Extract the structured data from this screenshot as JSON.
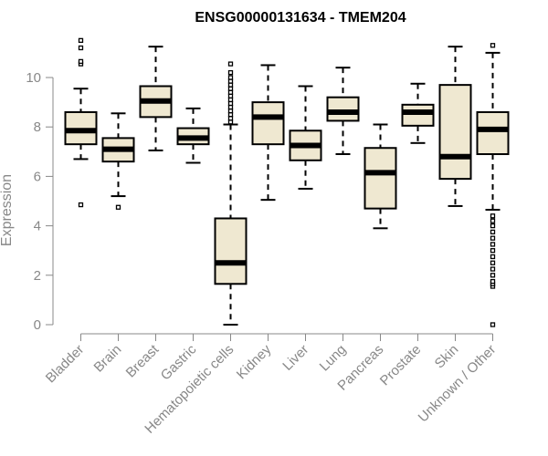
{
  "chart_data": {
    "type": "box",
    "title": "ENSG00000131634 - TMEM204",
    "ylabel": "Expression",
    "xlabel": "",
    "ylim": [
      0,
      11.2
    ],
    "yticks": [
      0,
      2,
      4,
      6,
      8,
      10
    ],
    "grid": false,
    "categories": [
      "Bladder",
      "Brain",
      "Breast",
      "Gastric",
      "Hematopoietic cells",
      "Kidney",
      "Liver",
      "Lung",
      "Pancreas",
      "Prostate",
      "Skin",
      "Unknown / Other"
    ],
    "boxes": [
      {
        "name": "Bladder",
        "whisker_low": 6.7,
        "q1": 7.3,
        "median": 7.85,
        "q3": 8.6,
        "whisker_high": 9.55,
        "outliers": [
          4.85,
          10.55,
          10.65,
          11.2,
          11.5
        ]
      },
      {
        "name": "Brain",
        "whisker_low": 5.2,
        "q1": 6.6,
        "median": 7.1,
        "q3": 7.55,
        "whisker_high": 8.55,
        "outliers": [
          4.75
        ]
      },
      {
        "name": "Breast",
        "whisker_low": 7.05,
        "q1": 8.4,
        "median": 9.05,
        "q3": 9.65,
        "whisker_high": 11.25,
        "outliers": []
      },
      {
        "name": "Gastric",
        "whisker_low": 6.55,
        "q1": 7.3,
        "median": 7.55,
        "q3": 7.95,
        "whisker_high": 8.75,
        "outliers": []
      },
      {
        "name": "Hematopoietic cells",
        "whisker_low": 0.0,
        "q1": 1.65,
        "median": 2.5,
        "q3": 4.3,
        "whisker_high": 8.1,
        "outliers": [
          8.2,
          8.35,
          8.5,
          8.65,
          8.8,
          8.95,
          9.1,
          9.25,
          9.4,
          9.55,
          9.7,
          9.85,
          10.0,
          10.2,
          10.55
        ]
      },
      {
        "name": "Kidney",
        "whisker_low": 5.05,
        "q1": 7.3,
        "median": 8.4,
        "q3": 9.0,
        "whisker_high": 10.5,
        "outliers": []
      },
      {
        "name": "Liver",
        "whisker_low": 5.5,
        "q1": 6.65,
        "median": 7.25,
        "q3": 7.85,
        "whisker_high": 9.65,
        "outliers": []
      },
      {
        "name": "Lung",
        "whisker_low": 6.9,
        "q1": 8.25,
        "median": 8.6,
        "q3": 9.2,
        "whisker_high": 10.4,
        "outliers": []
      },
      {
        "name": "Pancreas",
        "whisker_low": 3.9,
        "q1": 4.7,
        "median": 6.15,
        "q3": 7.15,
        "whisker_high": 8.1,
        "outliers": []
      },
      {
        "name": "Prostate",
        "whisker_low": 7.35,
        "q1": 8.05,
        "median": 8.6,
        "q3": 8.9,
        "whisker_high": 9.75,
        "outliers": []
      },
      {
        "name": "Skin",
        "whisker_low": 4.8,
        "q1": 5.9,
        "median": 6.8,
        "q3": 9.7,
        "whisker_high": 11.25,
        "outliers": []
      },
      {
        "name": "Unknown / Other",
        "whisker_low": 4.65,
        "q1": 6.9,
        "median": 7.9,
        "q3": 8.6,
        "whisker_high": 11.0,
        "outliers": [
          0.0,
          1.55,
          1.65,
          1.75,
          2.0,
          2.25,
          2.5,
          2.75,
          3.0,
          3.25,
          3.5,
          3.75,
          4.0,
          4.2,
          4.4,
          11.3
        ]
      }
    ],
    "colors": {
      "box_fill": "#efe8d1",
      "stroke": "#000000",
      "axis": "#888888"
    }
  }
}
